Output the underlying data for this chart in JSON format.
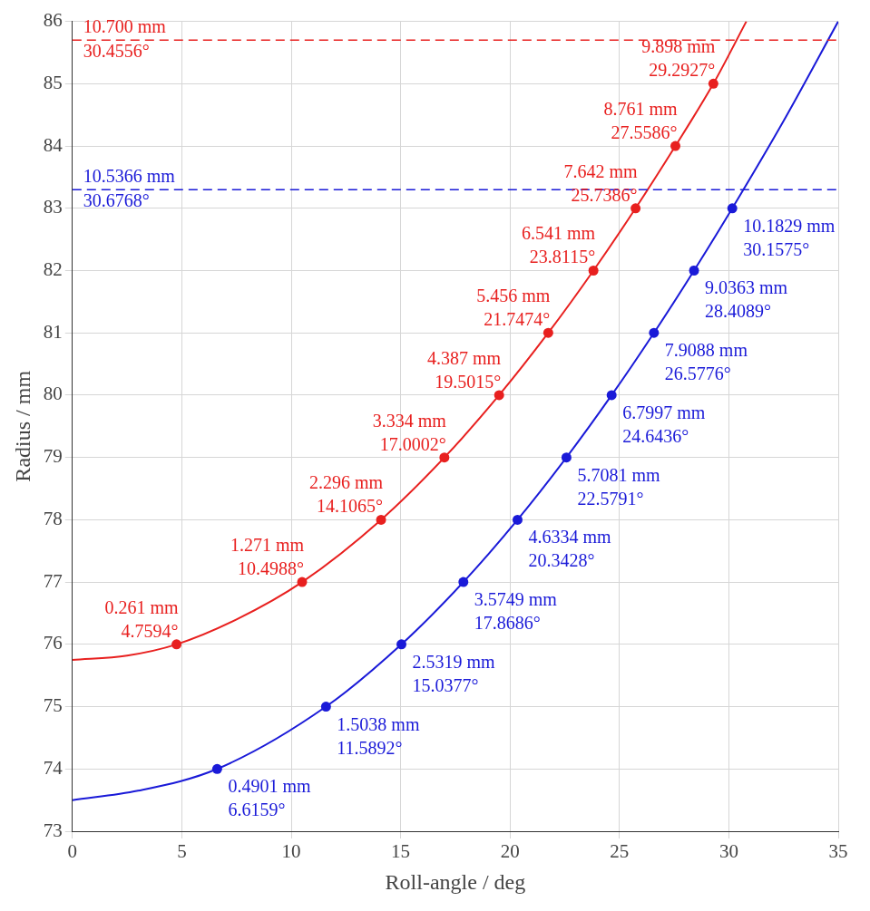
{
  "chart_data": {
    "type": "line",
    "xlabel": "Roll-angle / deg",
    "ylabel": "Radius / mm",
    "xlim": [
      0,
      35
    ],
    "xticks": [
      0,
      5,
      10,
      15,
      20,
      25,
      30,
      35
    ],
    "ylim": [
      73,
      86
    ],
    "yticks": [
      73,
      74,
      75,
      76,
      77,
      78,
      79,
      80,
      81,
      82,
      83,
      84,
      85,
      86
    ],
    "grid": true,
    "legend": false,
    "series": [
      {
        "type": "line",
        "marker": "none",
        "color": "#e8201f",
        "x": [
          0,
          2.5,
          4.7594,
          7.5,
          10.4988,
          14.1065,
          17.0002,
          19.5015,
          21.7474,
          23.8115,
          25.7386,
          27.5586,
          29.2927,
          30.8
        ],
        "values": [
          75.75,
          75.82,
          76,
          76.4,
          77,
          78,
          79,
          80,
          81,
          82,
          83,
          84,
          85,
          86
        ]
      },
      {
        "type": "scatter",
        "marker": "circle",
        "color": "#e8201f",
        "x": [
          4.7594,
          10.4988,
          14.1065,
          17.0002,
          19.5015,
          21.7474,
          23.8115,
          25.7386,
          27.5586,
          29.2927
        ],
        "values": [
          76,
          77,
          78,
          79,
          80,
          81,
          82,
          83,
          84,
          85
        ],
        "value_labels": [
          "0.261 mm\n4.7594°",
          "1.271 mm\n10.4988°",
          "2.296 mm\n14.1065°",
          "3.334 mm\n17.0002°",
          "4.387 mm\n19.5015°",
          "5.456 mm\n21.7474°",
          "6.541 mm\n23.8115°",
          "7.642 mm\n25.7386°",
          "8.761 mm\n27.5586°",
          "9.898 mm\n29.2927°"
        ]
      },
      {
        "type": "line",
        "marker": "none",
        "color": "#1a1ad8",
        "x": [
          0,
          3,
          6.6159,
          11.5892,
          15.0377,
          17.8686,
          20.3428,
          22.5791,
          24.6436,
          26.5776,
          28.4089,
          30.1575,
          32.5,
          35
        ],
        "values": [
          73.5,
          73.65,
          74,
          75,
          76,
          77,
          78,
          79,
          80,
          81,
          82,
          83,
          84.4,
          86
        ]
      },
      {
        "type": "scatter",
        "marker": "circle",
        "color": "#1a1ad8",
        "x": [
          6.6159,
          11.5892,
          15.0377,
          17.8686,
          20.3428,
          22.5791,
          24.6436,
          26.5776,
          28.4089,
          30.1575
        ],
        "values": [
          74,
          75,
          76,
          77,
          78,
          79,
          80,
          81,
          82,
          83
        ],
        "value_labels": [
          "0.4901 mm\n6.6159°",
          "1.5038 mm\n11.5892°",
          "2.5319 mm\n15.0377°",
          "3.5749 mm\n17.8686°",
          "4.6334 mm\n20.3428°",
          "5.7081 mm\n22.5791°",
          "6.7997 mm\n24.6436°",
          "7.9088 mm\n26.5776°",
          "9.0363 mm\n28.4089°",
          "10.1829 mm\n30.1575°"
        ]
      }
    ],
    "ref_lines": [
      {
        "axis": "y",
        "value": 85.7,
        "label": "10.700 mm\n30.4556°",
        "color": "#e8201f",
        "line_style": "dashed"
      },
      {
        "axis": "y",
        "value": 83.3,
        "label": "10.5366 mm\n30.6768°",
        "color": "#1a1ad8",
        "line_style": "dashed"
      }
    ]
  }
}
